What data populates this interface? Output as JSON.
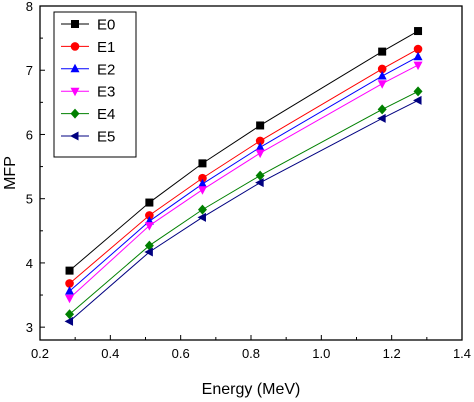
{
  "chart_data": {
    "type": "line",
    "title": "",
    "xlabel": "Energy (MeV)",
    "ylabel": "MFP",
    "xlim": [
      0.2,
      1.4
    ],
    "ylim": [
      2.8,
      8.0
    ],
    "x_ticks": [
      "0.2",
      "0.4",
      "0.6",
      "0.8",
      "1.0",
      "1.2",
      "1.4"
    ],
    "y_ticks": [
      "3",
      "4",
      "5",
      "6",
      "7",
      "8"
    ],
    "x_tick_values": [
      0.2,
      0.4,
      0.6,
      0.8,
      1.0,
      1.2,
      1.4
    ],
    "y_tick_values": [
      3,
      4,
      5,
      6,
      7,
      8
    ],
    "grid": false,
    "legend_position": "top-left",
    "x": [
      0.284,
      0.511,
      0.662,
      0.826,
      1.173,
      1.275
    ],
    "series": [
      {
        "name": "E0",
        "color": "#000000",
        "marker": "square",
        "values": [
          3.88,
          4.94,
          5.55,
          6.14,
          7.29,
          7.61
        ]
      },
      {
        "name": "E1",
        "color": "#ff0000",
        "marker": "circle",
        "values": [
          3.68,
          4.74,
          5.32,
          5.9,
          7.02,
          7.33
        ]
      },
      {
        "name": "E2",
        "color": "#0000ff",
        "marker": "triangle-up",
        "values": [
          3.56,
          4.65,
          5.23,
          5.8,
          6.91,
          7.21
        ]
      },
      {
        "name": "E3",
        "color": "#ff00ff",
        "marker": "triangle-down",
        "values": [
          3.45,
          4.58,
          5.14,
          5.71,
          6.79,
          7.08
        ]
      },
      {
        "name": "E4",
        "color": "#008000",
        "marker": "diamond",
        "values": [
          3.2,
          4.27,
          4.83,
          5.36,
          6.39,
          6.67
        ]
      },
      {
        "name": "E5",
        "color": "#000080",
        "marker": "triangle-left",
        "values": [
          3.09,
          4.17,
          4.71,
          5.25,
          6.25,
          6.53
        ]
      }
    ]
  }
}
